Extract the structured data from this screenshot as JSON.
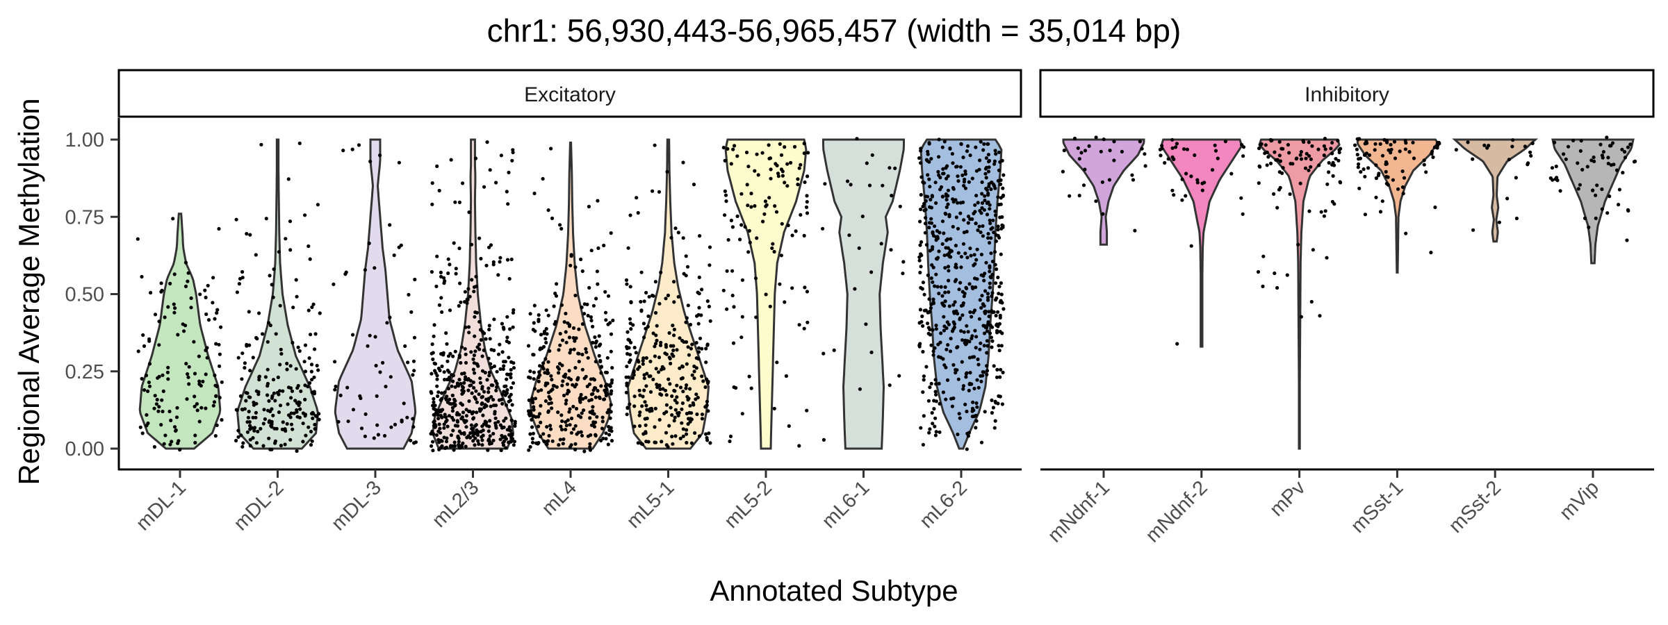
{
  "chart_data": {
    "type": "violin",
    "title": "chr1: 56,930,443-56,965,457 (width = 35,014 bp)",
    "xlabel": "Annotated Subtype",
    "ylabel": "Regional Average Methylation",
    "ylim": [
      0,
      1
    ],
    "yticks": [
      "0.00",
      "0.25",
      "0.50",
      "0.75",
      "1.00"
    ],
    "ytick_values": [
      0,
      0.25,
      0.5,
      0.75,
      1.0
    ],
    "grid": false,
    "legend": "none",
    "panels": [
      {
        "name": "Excitatory",
        "groups": [
          {
            "label": "mDL-1",
            "color": "#b8e2b4",
            "min": 0.0,
            "max": 0.76,
            "median": 0.15,
            "profile": [
              [
                0,
                0.35
              ],
              [
                0.05,
                0.8
              ],
              [
                0.12,
                1.0
              ],
              [
                0.2,
                0.95
              ],
              [
                0.3,
                0.7
              ],
              [
                0.4,
                0.5
              ],
              [
                0.5,
                0.4
              ],
              [
                0.55,
                0.32
              ],
              [
                0.6,
                0.15
              ],
              [
                0.65,
                0.08
              ],
              [
                0.7,
                0.06
              ],
              [
                0.76,
                0.03
              ]
            ],
            "n": 130
          },
          {
            "label": "mDL-2",
            "color": "#c9dccb",
            "min": 0.0,
            "max": 1.0,
            "median": 0.15,
            "profile": [
              [
                0,
                0.6
              ],
              [
                0.05,
                0.95
              ],
              [
                0.12,
                1.0
              ],
              [
                0.2,
                0.8
              ],
              [
                0.3,
                0.45
              ],
              [
                0.4,
                0.25
              ],
              [
                0.5,
                0.12
              ],
              [
                0.6,
                0.06
              ],
              [
                0.7,
                0.04
              ],
              [
                0.8,
                0.03
              ],
              [
                0.9,
                0.02
              ],
              [
                1.0,
                0.02
              ]
            ],
            "n": 220
          },
          {
            "label": "mDL-3",
            "color": "#ddd5ea",
            "min": 0.0,
            "max": 1.0,
            "median": 0.25,
            "profile": [
              [
                0,
                0.7
              ],
              [
                0.05,
                0.9
              ],
              [
                0.12,
                1.0
              ],
              [
                0.22,
                0.9
              ],
              [
                0.32,
                0.55
              ],
              [
                0.42,
                0.35
              ],
              [
                0.5,
                0.3
              ],
              [
                0.58,
                0.25
              ],
              [
                0.65,
                0.18
              ],
              [
                0.75,
                0.12
              ],
              [
                0.85,
                0.06
              ],
              [
                0.93,
                0.12
              ],
              [
                1.0,
                0.12
              ]
            ],
            "n": 65
          },
          {
            "label": "mL2/3",
            "color": "#efd8d3",
            "min": 0.0,
            "max": 1.0,
            "median": 0.12,
            "profile": [
              [
                0,
                0.85
              ],
              [
                0.05,
                1.0
              ],
              [
                0.1,
                0.95
              ],
              [
                0.18,
                0.7
              ],
              [
                0.25,
                0.45
              ],
              [
                0.32,
                0.3
              ],
              [
                0.4,
                0.2
              ],
              [
                0.5,
                0.12
              ],
              [
                0.6,
                0.08
              ],
              [
                0.7,
                0.06
              ],
              [
                0.8,
                0.05
              ],
              [
                0.88,
                0.06
              ],
              [
                0.92,
                0.05
              ],
              [
                1.0,
                0.05
              ]
            ],
            "n": 500
          },
          {
            "label": "mL4",
            "color": "#fbd7b8",
            "min": 0.0,
            "max": 0.99,
            "median": 0.15,
            "profile": [
              [
                0,
                0.55
              ],
              [
                0.05,
                0.8
              ],
              [
                0.1,
                0.95
              ],
              [
                0.15,
                1.0
              ],
              [
                0.22,
                0.85
              ],
              [
                0.3,
                0.6
              ],
              [
                0.4,
                0.35
              ],
              [
                0.5,
                0.18
              ],
              [
                0.6,
                0.1
              ],
              [
                0.7,
                0.06
              ],
              [
                0.8,
                0.04
              ],
              [
                0.9,
                0.03
              ],
              [
                0.99,
                0.01
              ]
            ],
            "n": 350
          },
          {
            "label": "mL5-1",
            "color": "#fde8c1",
            "min": 0.0,
            "max": 1.0,
            "median": 0.2,
            "profile": [
              [
                0,
                0.55
              ],
              [
                0.05,
                0.85
              ],
              [
                0.12,
                0.95
              ],
              [
                0.2,
                1.0
              ],
              [
                0.28,
                0.8
              ],
              [
                0.36,
                0.6
              ],
              [
                0.44,
                0.4
              ],
              [
                0.52,
                0.25
              ],
              [
                0.6,
                0.15
              ],
              [
                0.7,
                0.08
              ],
              [
                0.8,
                0.05
              ],
              [
                0.9,
                0.03
              ],
              [
                1.0,
                0.02
              ]
            ],
            "n": 300
          },
          {
            "label": "mL5-2",
            "color": "#fdfcc3",
            "min": 0.0,
            "max": 1.0,
            "median": 0.75,
            "profile": [
              [
                0,
                0.12
              ],
              [
                0.1,
                0.14
              ],
              [
                0.2,
                0.16
              ],
              [
                0.3,
                0.18
              ],
              [
                0.4,
                0.2
              ],
              [
                0.5,
                0.22
              ],
              [
                0.6,
                0.28
              ],
              [
                0.7,
                0.45
              ],
              [
                0.8,
                0.75
              ],
              [
                0.9,
                0.95
              ],
              [
                0.97,
                1.0
              ],
              [
                1.0,
                0.95
              ]
            ],
            "n": 120
          },
          {
            "label": "mL6-1",
            "color": "#cfdbd3",
            "min": 0.0,
            "max": 1.0,
            "median": 0.8,
            "profile": [
              [
                0,
                0.45
              ],
              [
                0.1,
                0.48
              ],
              [
                0.2,
                0.5
              ],
              [
                0.3,
                0.46
              ],
              [
                0.4,
                0.42
              ],
              [
                0.5,
                0.4
              ],
              [
                0.6,
                0.48
              ],
              [
                0.7,
                0.6
              ],
              [
                0.75,
                0.55
              ],
              [
                0.8,
                0.72
              ],
              [
                0.9,
                0.9
              ],
              [
                0.97,
                1.0
              ],
              [
                1.0,
                1.0
              ]
            ],
            "n": 30
          },
          {
            "label": "mL6-2",
            "color": "#94b3db",
            "min": 0.0,
            "max": 1.0,
            "median": 0.7,
            "profile": [
              [
                0,
                0.05
              ],
              [
                0.05,
                0.2
              ],
              [
                0.12,
                0.45
              ],
              [
                0.2,
                0.6
              ],
              [
                0.3,
                0.68
              ],
              [
                0.4,
                0.72
              ],
              [
                0.5,
                0.78
              ],
              [
                0.6,
                0.82
              ],
              [
                0.7,
                0.85
              ],
              [
                0.8,
                0.9
              ],
              [
                0.9,
                0.97
              ],
              [
                0.97,
                1.0
              ],
              [
                1.0,
                0.85
              ]
            ],
            "n": 900
          }
        ]
      },
      {
        "name": "Inhibitory",
        "groups": [
          {
            "label": "mNdnf-1",
            "color": "#c994d6",
            "min": 0.66,
            "max": 1.0,
            "median": 0.95,
            "profile": [
              [
                0.66,
                0.08
              ],
              [
                0.7,
                0.08
              ],
              [
                0.75,
                0.05
              ],
              [
                0.8,
                0.12
              ],
              [
                0.85,
                0.25
              ],
              [
                0.9,
                0.5
              ],
              [
                0.95,
                0.85
              ],
              [
                0.99,
                1.0
              ],
              [
                1.0,
                1.0
              ]
            ],
            "n": 30
          },
          {
            "label": "mNdnf-2",
            "color": "#f071b3",
            "min": 0.33,
            "max": 1.0,
            "median": 0.9,
            "profile": [
              [
                0.33,
                0.02
              ],
              [
                0.45,
                0.02
              ],
              [
                0.55,
                0.02
              ],
              [
                0.65,
                0.03
              ],
              [
                0.7,
                0.05
              ],
              [
                0.8,
                0.2
              ],
              [
                0.87,
                0.45
              ],
              [
                0.93,
                0.75
              ],
              [
                0.98,
                1.0
              ],
              [
                1.0,
                0.95
              ]
            ],
            "n": 40
          },
          {
            "label": "mPv",
            "color": "#ec8a97",
            "min": 0.0,
            "max": 1.0,
            "median": 0.95,
            "profile": [
              [
                0,
                0.01
              ],
              [
                0.2,
                0.01
              ],
              [
                0.4,
                0.02
              ],
              [
                0.6,
                0.03
              ],
              [
                0.7,
                0.05
              ],
              [
                0.8,
                0.1
              ],
              [
                0.88,
                0.25
              ],
              [
                0.93,
                0.55
              ],
              [
                0.98,
                1.0
              ],
              [
                1.0,
                0.95
              ]
            ],
            "n": 95
          },
          {
            "label": "mSst-1",
            "color": "#f0aa7d",
            "min": 0.57,
            "max": 1.0,
            "median": 0.95,
            "profile": [
              [
                0.57,
                0.01
              ],
              [
                0.65,
                0.02
              ],
              [
                0.75,
                0.03
              ],
              [
                0.8,
                0.08
              ],
              [
                0.85,
                0.2
              ],
              [
                0.9,
                0.4
              ],
              [
                0.95,
                0.8
              ],
              [
                0.99,
                1.0
              ],
              [
                1.0,
                0.95
              ]
            ],
            "n": 80
          },
          {
            "label": "mSst-2",
            "color": "#cfae91",
            "min": 0.67,
            "max": 1.0,
            "median": 0.98,
            "profile": [
              [
                0.67,
                0.04
              ],
              [
                0.7,
                0.07
              ],
              [
                0.74,
                0.03
              ],
              [
                0.78,
                0.08
              ],
              [
                0.82,
                0.04
              ],
              [
                0.88,
                0.06
              ],
              [
                0.93,
                0.3
              ],
              [
                0.97,
                0.75
              ],
              [
                1.0,
                1.0
              ]
            ],
            "n": 20
          },
          {
            "label": "mVip",
            "color": "#a9a9a9",
            "min": 0.6,
            "max": 1.0,
            "median": 0.95,
            "profile": [
              [
                0.6,
                0.04
              ],
              [
                0.66,
                0.06
              ],
              [
                0.72,
                0.12
              ],
              [
                0.8,
                0.3
              ],
              [
                0.86,
                0.5
              ],
              [
                0.92,
                0.7
              ],
              [
                0.97,
                0.95
              ],
              [
                1.0,
                1.0
              ]
            ],
            "n": 60
          }
        ]
      }
    ]
  }
}
